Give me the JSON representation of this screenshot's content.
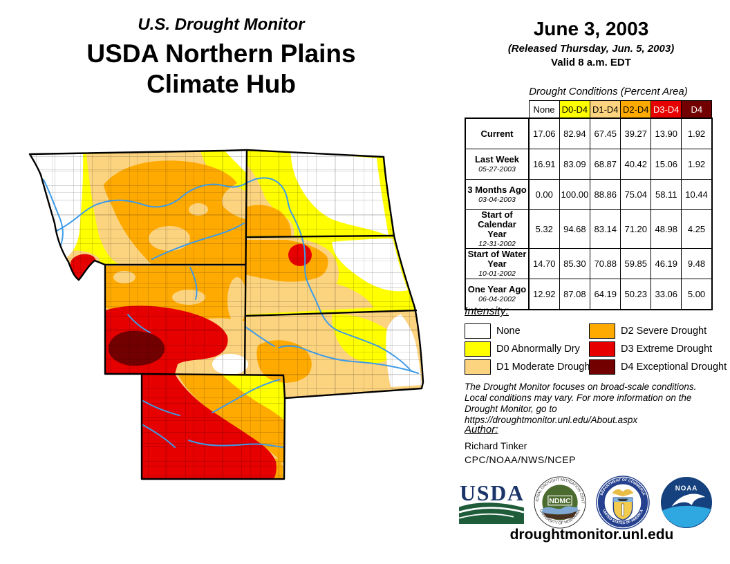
{
  "header": {
    "monitor_title": "U.S. Drought Monitor",
    "hub_title_line1": "USDA Northern Plains",
    "hub_title_line2": "Climate Hub",
    "date": "June 3, 2003",
    "released": "(Released Thursday, Jun. 5, 2003)",
    "valid": "Valid 8 a.m. EDT"
  },
  "table": {
    "title": "Drought Conditions (Percent Area)",
    "columns": [
      "None",
      "D0-D4",
      "D1-D4",
      "D2-D4",
      "D3-D4",
      "D4"
    ],
    "column_colors": [
      "#FFFFFF",
      "#FFFF00",
      "#FCD37F",
      "#FFAA00",
      "#E60000",
      "#730000"
    ],
    "column_text_colors": [
      "#000000",
      "#000000",
      "#000000",
      "#000000",
      "#FFFFFF",
      "#FFFFFF"
    ],
    "rows": [
      {
        "label": "Current",
        "sublabel": "",
        "values": [
          "17.06",
          "82.94",
          "67.45",
          "39.27",
          "13.90",
          "1.92"
        ]
      },
      {
        "label": "Last Week",
        "sublabel": "05-27-2003",
        "values": [
          "16.91",
          "83.09",
          "68.87",
          "40.42",
          "15.06",
          "1.92"
        ]
      },
      {
        "label": "3 Months Ago",
        "sublabel": "03-04-2003",
        "values": [
          "0.00",
          "100.00",
          "88.86",
          "75.04",
          "58.11",
          "10.44"
        ]
      },
      {
        "label": "Start of Calendar Year",
        "sublabel": "12-31-2002",
        "values": [
          "5.32",
          "94.68",
          "83.14",
          "71.20",
          "48.98",
          "4.25"
        ]
      },
      {
        "label": "Start of Water Year",
        "sublabel": "10-01-2002",
        "values": [
          "14.70",
          "85.30",
          "70.88",
          "59.85",
          "46.19",
          "9.48"
        ]
      },
      {
        "label": "One Year Ago",
        "sublabel": "06-04-2002",
        "values": [
          "12.92",
          "87.08",
          "64.19",
          "50.23",
          "33.06",
          "5.00"
        ]
      }
    ]
  },
  "legend": {
    "title": "Intensity:",
    "items": [
      {
        "label": "None",
        "color": "#FFFFFF"
      },
      {
        "label": "D0 Abnormally Dry",
        "color": "#FFFF00"
      },
      {
        "label": "D1 Moderate Drought",
        "color": "#FCD37F"
      },
      {
        "label": "D2 Severe Drought",
        "color": "#FFAA00"
      },
      {
        "label": "D3 Extreme Drought",
        "color": "#E60000"
      },
      {
        "label": "D4 Exceptional Drought",
        "color": "#730000"
      }
    ]
  },
  "disclaimer": {
    "line1": "The Drought Monitor focuses on broad-scale conditions.",
    "line2": "Local conditions may vary. For more information on the",
    "line3": "Drought Monitor, go to https://droughtmonitor.unl.edu/About.aspx"
  },
  "author": {
    "title": "Author:",
    "name": "Richard Tinker",
    "org": "CPC/NOAA/NWS/NCEP"
  },
  "footer": {
    "url": "droughtmonitor.unl.edu",
    "logos": {
      "usda": {
        "text": "USDA"
      },
      "ndmc": {
        "text": "NDMC",
        "ring_top": "NATIONAL DROUGHT MITIGATION CENTER",
        "ring_bottom": "UNIVERSITY OF NEBRASKA"
      },
      "doc": {
        "ring_top": "DEPARTMENT OF COMMERCE",
        "ring_bottom": "UNITED STATES OF AMERICA"
      },
      "noaa": {
        "text": "NOAA"
      }
    }
  }
}
